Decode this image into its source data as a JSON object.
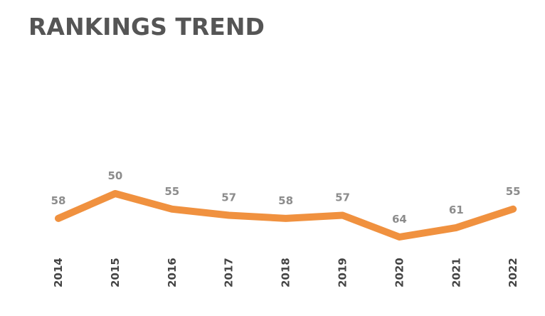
{
  "chart_data": {
    "type": "line",
    "title": "RANKINGS TREND",
    "categories": [
      "2014",
      "2015",
      "2016",
      "2017",
      "2018",
      "2019",
      "2020",
      "2021",
      "2022"
    ],
    "series": [
      {
        "color": "#f0913f",
        "values": [
          58,
          50,
          55,
          57,
          58,
          57,
          64,
          61,
          55
        ]
      }
    ]
  }
}
